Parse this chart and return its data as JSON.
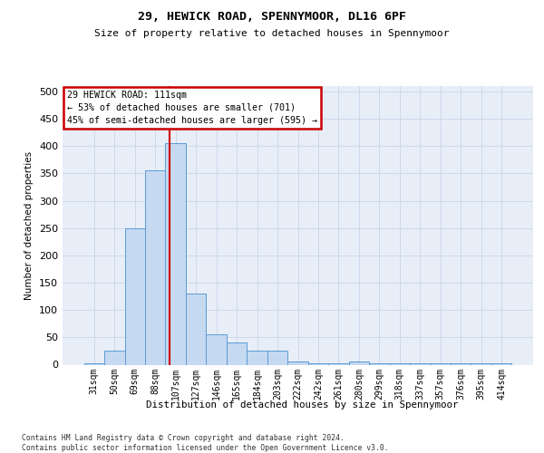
{
  "title_line1": "29, HEWICK ROAD, SPENNYMOOR, DL16 6PF",
  "title_line2": "Size of property relative to detached houses in Spennymoor",
  "xlabel": "Distribution of detached houses by size in Spennymoor",
  "ylabel": "Number of detached properties",
  "footnote1": "Contains HM Land Registry data © Crown copyright and database right 2024.",
  "footnote2": "Contains public sector information licensed under the Open Government Licence v3.0.",
  "bin_labels": [
    "31sqm",
    "50sqm",
    "69sqm",
    "88sqm",
    "107sqm",
    "127sqm",
    "146sqm",
    "165sqm",
    "184sqm",
    "203sqm",
    "222sqm",
    "242sqm",
    "261sqm",
    "280sqm",
    "299sqm",
    "318sqm",
    "337sqm",
    "357sqm",
    "376sqm",
    "395sqm",
    "414sqm"
  ],
  "bar_values": [
    3,
    25,
    250,
    355,
    405,
    130,
    55,
    40,
    25,
    25,
    5,
    3,
    3,
    5,
    3,
    3,
    3,
    2,
    3,
    2,
    3
  ],
  "bar_color": "#c5d9f1",
  "bar_edge_color": "#5b9bd5",
  "red_line_index": 3.72,
  "annotation_line1": "29 HEWICK ROAD: 111sqm",
  "annotation_line2": "← 53% of detached houses are smaller (701)",
  "annotation_line3": "45% of semi-detached houses are larger (595) →",
  "annotation_box_facecolor": "#ffffff",
  "annotation_box_edgecolor": "#cc0000",
  "red_line_color": "#cc0000",
  "grid_color": "#ccd8ec",
  "background_color": "#e8eef8",
  "ylim": [
    0,
    510
  ],
  "yticks": [
    0,
    50,
    100,
    150,
    200,
    250,
    300,
    350,
    400,
    450,
    500
  ]
}
